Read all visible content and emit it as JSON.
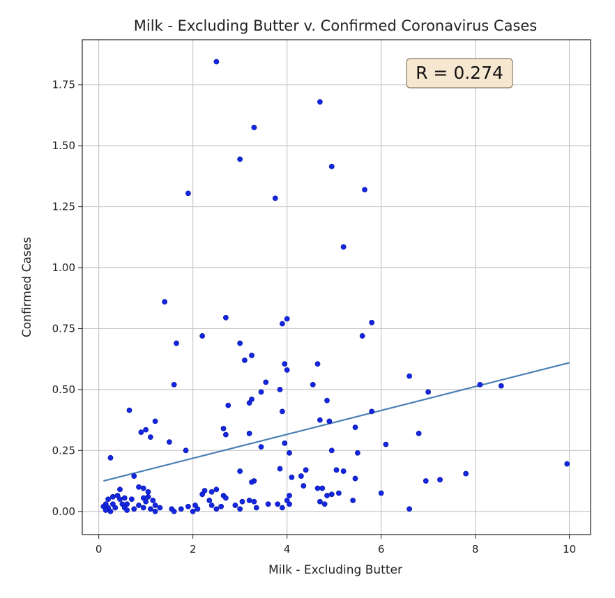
{
  "chart_data": {
    "type": "scatter",
    "title": "Milk - Excluding Butter v. Confirmed Coronavirus Cases",
    "xlabel": "Milk - Excluding Butter",
    "ylabel": "Confirmed Cases",
    "xlim": [
      -0.35,
      10.45
    ],
    "ylim": [
      -0.095,
      1.935
    ],
    "xticks": [
      0,
      2,
      4,
      6,
      8,
      10
    ],
    "xtick_labels": [
      "0",
      "2",
      "4",
      "6",
      "8",
      "10"
    ],
    "yticks": [
      0,
      0.25,
      0.5,
      0.75,
      1.0,
      1.25,
      1.5,
      1.75
    ],
    "ytick_labels": [
      "0.00",
      "0.25",
      "0.50",
      "0.75",
      "1.00",
      "1.25",
      "1.50",
      "1.75"
    ],
    "grid": true,
    "annotation": "R = 0.274",
    "annotation_position": "top-right",
    "point_color": "#1326e0",
    "line_color": "#4a7fb5",
    "annotation_box_color": "#f6e7d0",
    "trendline": {
      "x": [
        0.1,
        10.0
      ],
      "y": [
        0.125,
        0.61
      ]
    },
    "points": [
      [
        2.5,
        1.845
      ],
      [
        4.7,
        1.68
      ],
      [
        3.3,
        1.575
      ],
      [
        3.0,
        1.445
      ],
      [
        4.95,
        1.415
      ],
      [
        1.9,
        1.305
      ],
      [
        5.65,
        1.32
      ],
      [
        3.75,
        1.285
      ],
      [
        5.2,
        1.085
      ],
      [
        1.4,
        0.86
      ],
      [
        2.7,
        0.795
      ],
      [
        4.0,
        0.79
      ],
      [
        3.9,
        0.77
      ],
      [
        5.8,
        0.775
      ],
      [
        2.2,
        0.72
      ],
      [
        5.6,
        0.72
      ],
      [
        1.65,
        0.69
      ],
      [
        3.0,
        0.69
      ],
      [
        3.25,
        0.64
      ],
      [
        3.1,
        0.62
      ],
      [
        3.95,
        0.605
      ],
      [
        4.65,
        0.605
      ],
      [
        4.0,
        0.58
      ],
      [
        6.6,
        0.555
      ],
      [
        3.55,
        0.53
      ],
      [
        1.6,
        0.52
      ],
      [
        4.55,
        0.52
      ],
      [
        8.1,
        0.52
      ],
      [
        8.55,
        0.515
      ],
      [
        3.85,
        0.5
      ],
      [
        3.45,
        0.49
      ],
      [
        7.0,
        0.49
      ],
      [
        3.25,
        0.46
      ],
      [
        3.2,
        0.445
      ],
      [
        4.85,
        0.455
      ],
      [
        2.75,
        0.435
      ],
      [
        0.65,
        0.415
      ],
      [
        3.9,
        0.41
      ],
      [
        5.8,
        0.41
      ],
      [
        4.7,
        0.375
      ],
      [
        4.9,
        0.37
      ],
      [
        1.2,
        0.37
      ],
      [
        5.45,
        0.345
      ],
      [
        2.65,
        0.34
      ],
      [
        1.0,
        0.335
      ],
      [
        0.9,
        0.325
      ],
      [
        2.7,
        0.315
      ],
      [
        3.2,
        0.32
      ],
      [
        6.8,
        0.32
      ],
      [
        1.1,
        0.305
      ],
      [
        1.5,
        0.285
      ],
      [
        3.95,
        0.28
      ],
      [
        6.1,
        0.275
      ],
      [
        3.45,
        0.265
      ],
      [
        1.85,
        0.25
      ],
      [
        4.95,
        0.25
      ],
      [
        5.5,
        0.24
      ],
      [
        4.05,
        0.24
      ],
      [
        0.25,
        0.22
      ],
      [
        9.95,
        0.195
      ],
      [
        3.85,
        0.175
      ],
      [
        4.4,
        0.17
      ],
      [
        5.05,
        0.17
      ],
      [
        5.2,
        0.165
      ],
      [
        3.0,
        0.165
      ],
      [
        7.8,
        0.155
      ],
      [
        4.3,
        0.145
      ],
      [
        0.75,
        0.145
      ],
      [
        4.1,
        0.14
      ],
      [
        5.45,
        0.135
      ],
      [
        7.25,
        0.13
      ],
      [
        6.95,
        0.125
      ],
      [
        3.3,
        0.125
      ],
      [
        3.25,
        0.12
      ],
      [
        4.35,
        0.105
      ],
      [
        0.85,
        0.1
      ],
      [
        0.95,
        0.095
      ],
      [
        4.65,
        0.095
      ],
      [
        4.75,
        0.095
      ],
      [
        0.45,
        0.09
      ],
      [
        2.5,
        0.09
      ],
      [
        2.25,
        0.085
      ],
      [
        2.4,
        0.08
      ],
      [
        1.05,
        0.08
      ],
      [
        0.4,
        0.065
      ],
      [
        4.05,
        0.065
      ],
      [
        4.85,
        0.065
      ],
      [
        4.95,
        0.07
      ],
      [
        5.1,
        0.075
      ],
      [
        6.0,
        0.075
      ],
      [
        0.3,
        0.06
      ],
      [
        0.55,
        0.055
      ],
      [
        0.95,
        0.055
      ],
      [
        1.05,
        0.06
      ],
      [
        2.2,
        0.07
      ],
      [
        2.65,
        0.065
      ],
      [
        2.7,
        0.055
      ],
      [
        0.2,
        0.05
      ],
      [
        0.45,
        0.05
      ],
      [
        0.7,
        0.05
      ],
      [
        1.0,
        0.04
      ],
      [
        1.15,
        0.045
      ],
      [
        2.35,
        0.045
      ],
      [
        3.05,
        0.04
      ],
      [
        3.2,
        0.045
      ],
      [
        3.3,
        0.04
      ],
      [
        4.0,
        0.045
      ],
      [
        4.7,
        0.04
      ],
      [
        5.4,
        0.045
      ],
      [
        0.15,
        0.03
      ],
      [
        0.3,
        0.03
      ],
      [
        0.5,
        0.03
      ],
      [
        0.6,
        0.03
      ],
      [
        0.85,
        0.025
      ],
      [
        1.2,
        0.025
      ],
      [
        1.9,
        0.02
      ],
      [
        2.05,
        0.025
      ],
      [
        2.4,
        0.025
      ],
      [
        2.6,
        0.02
      ],
      [
        2.9,
        0.025
      ],
      [
        3.6,
        0.03
      ],
      [
        3.8,
        0.03
      ],
      [
        4.05,
        0.03
      ],
      [
        4.8,
        0.03
      ],
      [
        0.1,
        0.02
      ],
      [
        0.2,
        0.015
      ],
      [
        0.35,
        0.015
      ],
      [
        0.55,
        0.015
      ],
      [
        0.75,
        0.01
      ],
      [
        0.95,
        0.015
      ],
      [
        1.1,
        0.01
      ],
      [
        1.3,
        0.015
      ],
      [
        1.55,
        0.01
      ],
      [
        1.75,
        0.01
      ],
      [
        2.1,
        0.01
      ],
      [
        2.5,
        0.01
      ],
      [
        3.0,
        0.01
      ],
      [
        3.35,
        0.015
      ],
      [
        3.9,
        0.015
      ],
      [
        0.15,
        0.005
      ],
      [
        0.25,
        0.0
      ],
      [
        0.6,
        0.005
      ],
      [
        1.2,
        0.0
      ],
      [
        1.6,
        0.0
      ],
      [
        2.0,
        0.0
      ],
      [
        6.6,
        0.01
      ]
    ]
  }
}
